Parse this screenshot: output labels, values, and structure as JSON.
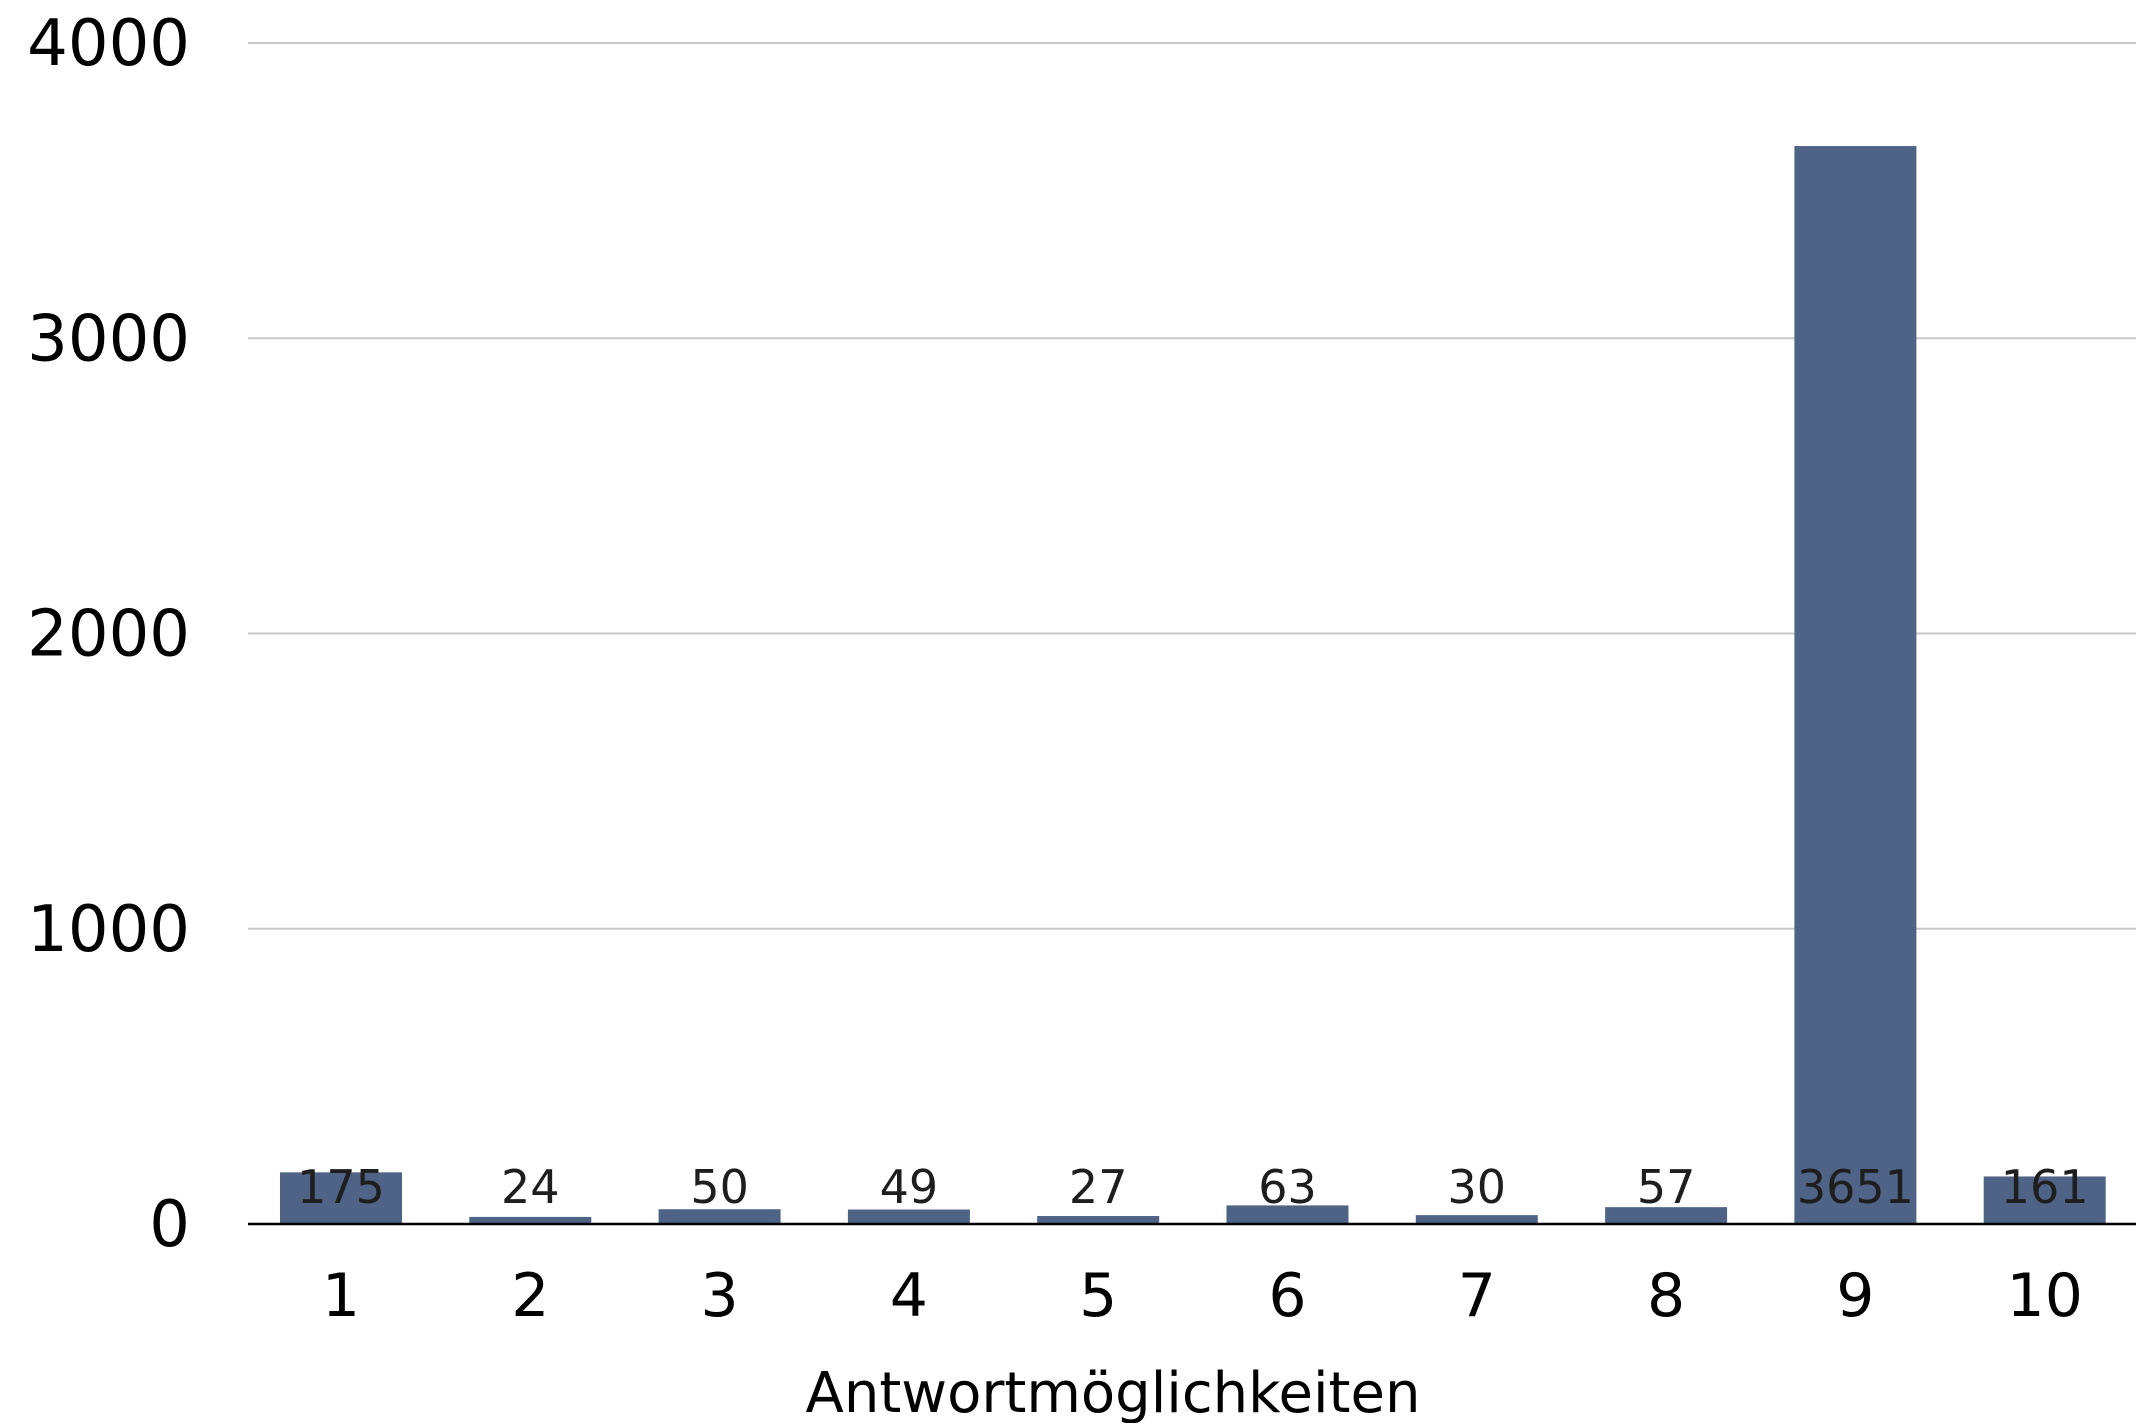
{
  "chart_data": {
    "type": "bar",
    "categories": [
      "1",
      "2",
      "3",
      "4",
      "5",
      "6",
      "7",
      "8",
      "9",
      "10"
    ],
    "values": [
      175,
      24,
      50,
      49,
      27,
      63,
      30,
      57,
      3651,
      161
    ],
    "data_labels": [
      "175",
      "24",
      "50",
      "49",
      "27",
      "63",
      "30",
      "57",
      "3651",
      "161"
    ],
    "title": "",
    "xlabel": "Antwortmöglichkeiten",
    "ylabel": "",
    "ylim": [
      0,
      4000
    ],
    "yticks": [
      "0",
      "1000",
      "2000",
      "3000",
      "4000"
    ],
    "ytick_values": [
      0,
      1000,
      2000,
      3000,
      4000
    ],
    "grid": true,
    "legend": "none",
    "bar_color": "#4e6385"
  }
}
